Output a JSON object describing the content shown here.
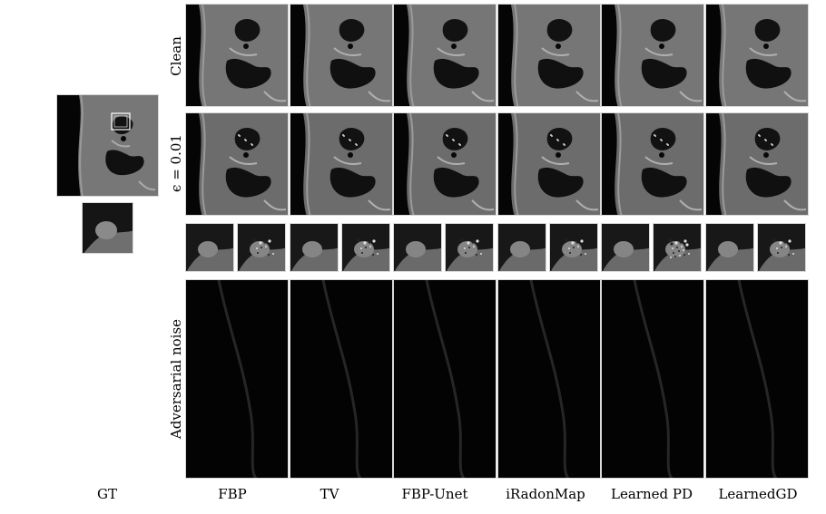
{
  "figure": {
    "rows": [
      {
        "key": "clean",
        "label": "Clean"
      },
      {
        "key": "perturbed",
        "label": "ϵ = 0.01"
      },
      {
        "key": "zoom",
        "label": ""
      },
      {
        "key": "noise",
        "label": "Adversarial noise"
      }
    ],
    "columns": [
      "FBP",
      "TV",
      "FBP-Unet",
      "iRadonMap",
      "Learned PD",
      "LearnedGD"
    ],
    "gt_label": "GT",
    "colors": {
      "background": "#000000",
      "tissue": "#7a7a7a",
      "air": "#101010",
      "frame": "#d8d8d8",
      "highlight_box": "#ffffff"
    }
  }
}
